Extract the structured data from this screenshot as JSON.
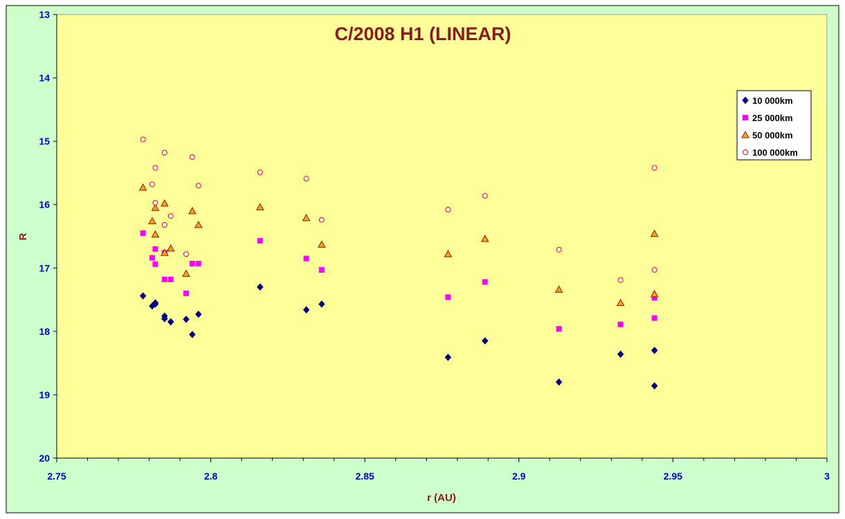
{
  "chart_data": {
    "type": "scatter",
    "title": "C/2008 H1 (LINEAR)",
    "xlabel": "r (AU)",
    "ylabel": "R",
    "xlim": [
      2.75,
      3
    ],
    "ylim": [
      13,
      20
    ],
    "y_reversed": true,
    "x_ticks": [
      "2.75",
      "2.8",
      "2.85",
      "2.9",
      "2.95",
      "3"
    ],
    "y_ticks": [
      "13",
      "14",
      "15",
      "16",
      "17",
      "18",
      "19",
      "20"
    ],
    "grid": false,
    "legend_position": "top-right",
    "colors": {
      "outer_background": "#ccffcc",
      "plot_background": "#ffff99",
      "title": "#8b1a1a",
      "tick_labels": "#0000cc"
    },
    "series": [
      {
        "name": "10 000km",
        "marker": "diamond",
        "color": "#000080",
        "points": [
          [
            2.778,
            17.44
          ],
          [
            2.781,
            17.6
          ],
          [
            2.782,
            17.57
          ],
          [
            2.782,
            17.55
          ],
          [
            2.785,
            17.76
          ],
          [
            2.785,
            17.8
          ],
          [
            2.787,
            17.85
          ],
          [
            2.792,
            17.81
          ],
          [
            2.794,
            18.05
          ],
          [
            2.796,
            17.73
          ],
          [
            2.816,
            17.3
          ],
          [
            2.831,
            17.66
          ],
          [
            2.836,
            17.57
          ],
          [
            2.877,
            18.41
          ],
          [
            2.889,
            18.15
          ],
          [
            2.913,
            18.8
          ],
          [
            2.933,
            18.36
          ],
          [
            2.944,
            18.3
          ],
          [
            2.944,
            18.86
          ]
        ]
      },
      {
        "name": "25 000km",
        "marker": "square",
        "color": "#ff00ff",
        "points": [
          [
            2.778,
            16.45
          ],
          [
            2.781,
            16.84
          ],
          [
            2.782,
            16.7
          ],
          [
            2.782,
            16.94
          ],
          [
            2.785,
            16.76
          ],
          [
            2.785,
            17.18
          ],
          [
            2.787,
            17.18
          ],
          [
            2.792,
            17.4
          ],
          [
            2.794,
            16.93
          ],
          [
            2.796,
            16.93
          ],
          [
            2.816,
            16.57
          ],
          [
            2.831,
            16.85
          ],
          [
            2.836,
            17.03
          ],
          [
            2.877,
            17.46
          ],
          [
            2.889,
            17.22
          ],
          [
            2.913,
            17.96
          ],
          [
            2.933,
            17.89
          ],
          [
            2.944,
            17.47
          ],
          [
            2.944,
            17.79
          ]
        ]
      },
      {
        "name": "50 000km",
        "marker": "triangle",
        "color": "#ffa500",
        "points": [
          [
            2.778,
            15.73
          ],
          [
            2.781,
            16.26
          ],
          [
            2.782,
            16.47
          ],
          [
            2.782,
            16.05
          ],
          [
            2.785,
            15.98
          ],
          [
            2.785,
            16.76
          ],
          [
            2.787,
            16.69
          ],
          [
            2.792,
            17.09
          ],
          [
            2.794,
            16.1
          ],
          [
            2.796,
            16.32
          ],
          [
            2.816,
            16.04
          ],
          [
            2.831,
            16.21
          ],
          [
            2.836,
            16.63
          ],
          [
            2.877,
            16.78
          ],
          [
            2.889,
            16.54
          ],
          [
            2.913,
            17.34
          ],
          [
            2.933,
            17.55
          ],
          [
            2.944,
            16.46
          ],
          [
            2.944,
            17.41
          ]
        ]
      },
      {
        "name": "100 000km",
        "marker": "circle",
        "color": "#ff0000",
        "points": [
          [
            2.778,
            14.97
          ],
          [
            2.781,
            15.68
          ],
          [
            2.782,
            15.42
          ],
          [
            2.782,
            15.97
          ],
          [
            2.785,
            15.18
          ],
          [
            2.785,
            16.32
          ],
          [
            2.787,
            16.18
          ],
          [
            2.792,
            16.78
          ],
          [
            2.794,
            15.25
          ],
          [
            2.796,
            15.7
          ],
          [
            2.816,
            15.49
          ],
          [
            2.831,
            15.59
          ],
          [
            2.836,
            16.24
          ],
          [
            2.877,
            16.08
          ],
          [
            2.889,
            15.86
          ],
          [
            2.913,
            16.71
          ],
          [
            2.933,
            17.19
          ],
          [
            2.944,
            15.42
          ],
          [
            2.944,
            17.03
          ]
        ]
      }
    ]
  }
}
